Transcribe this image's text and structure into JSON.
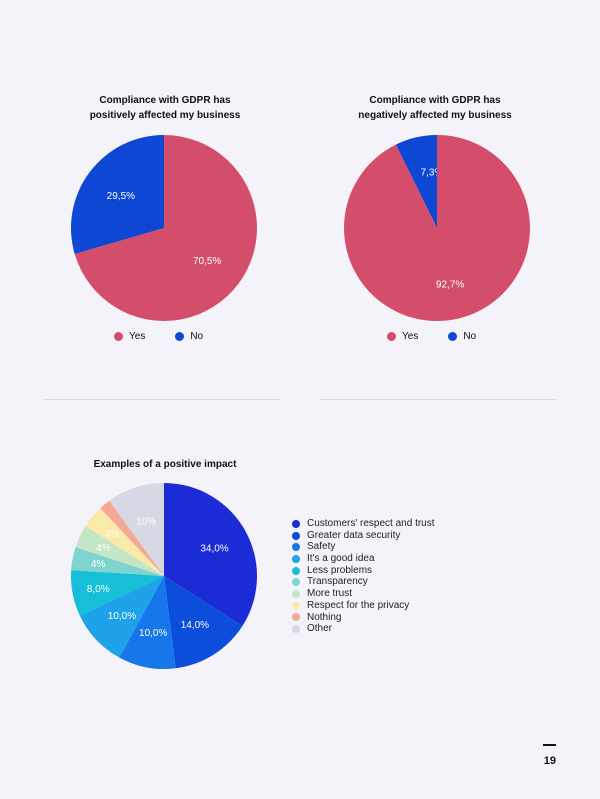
{
  "colors": {
    "yes": "#d44e6b",
    "no": "#0d47d4",
    "background": "#f3f3f9"
  },
  "chart_data": [
    {
      "type": "pie",
      "title": "Compliance with GDPR has\npositively affected my business",
      "legend_position": "bottom",
      "slices": [
        {
          "name": "Yes",
          "value": 70.5,
          "label": "70,5%",
          "color": "#d44e6b"
        },
        {
          "name": "No",
          "value": 29.5,
          "label": "29,5%",
          "color": "#0d47d4"
        }
      ]
    },
    {
      "type": "pie",
      "title": "Compliance with GDPR has\nnegatively affected my business",
      "legend_position": "bottom",
      "slices": [
        {
          "name": "Yes",
          "value": 92.7,
          "label": "92,7%",
          "color": "#d44e6b"
        },
        {
          "name": "No",
          "value": 7.3,
          "label": "7,3%",
          "color": "#0d47d4"
        }
      ]
    },
    {
      "type": "pie",
      "title": "Examples of a positive impact",
      "legend_position": "right",
      "slices": [
        {
          "name": "Customers' respect and trust",
          "value": 34,
          "label": "34,0%",
          "color": "#1b2bd6"
        },
        {
          "name": "Greater data security",
          "value": 14,
          "label": "14,0%",
          "color": "#0d4ddb"
        },
        {
          "name": "Safety",
          "value": 10,
          "label": "10,0%",
          "color": "#1577ea"
        },
        {
          "name": "It's a good idea",
          "value": 10,
          "label": "10,0%",
          "color": "#1ea2ea"
        },
        {
          "name": "Less problems",
          "value": 8,
          "label": "8,0%",
          "color": "#16bfd6"
        },
        {
          "name": "Transparency",
          "value": 4,
          "label": "4%",
          "color": "#7fd4d0"
        },
        {
          "name": "More trust",
          "value": 4,
          "label": "4%",
          "color": "#c3e6c6"
        },
        {
          "name": "Respect for the privacy",
          "value": 4,
          "label": "4%",
          "color": "#fbe9a9"
        },
        {
          "name": "Nothing",
          "value": 2,
          "label": "",
          "color": "#f6a896"
        },
        {
          "name": "Other",
          "value": 10,
          "label": "10%",
          "color": "#d6d9e3"
        }
      ]
    }
  ],
  "page": {
    "number": "19"
  }
}
